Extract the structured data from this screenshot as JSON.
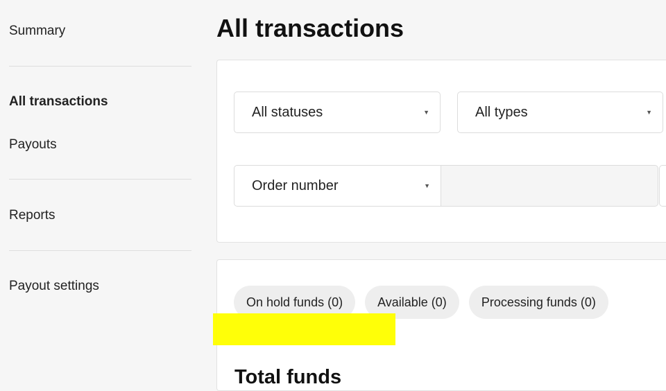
{
  "sidebar": {
    "items": [
      {
        "label": "Summary"
      },
      {
        "label": "All transactions",
        "active": true
      },
      {
        "label": "Payouts"
      },
      {
        "label": "Reports"
      },
      {
        "label": "Payout settings"
      }
    ]
  },
  "page_title": "All transactions",
  "filters": {
    "status_select": "All statuses",
    "type_select": "All types",
    "search_field_select": "Order number",
    "search_value": ""
  },
  "funds": {
    "tabs": [
      {
        "label": "On hold funds (0)"
      },
      {
        "label": "Available (0)"
      },
      {
        "label": "Processing funds (0)"
      }
    ],
    "heading": "Total funds"
  },
  "colors": {
    "highlight": "#ffff00",
    "chip_bg": "#eeeeee",
    "background": "#f6f6f6"
  }
}
